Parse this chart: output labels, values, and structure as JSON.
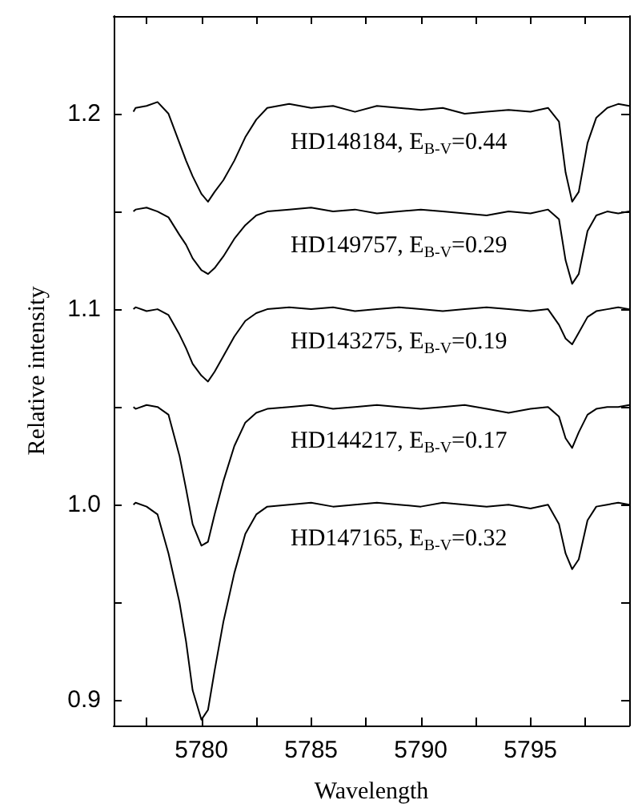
{
  "chart_data": {
    "type": "line",
    "xlabel": "Wavelength",
    "ylabel": "Relative intensity",
    "x": [
      5776.9,
      5777,
      5777.5,
      5778,
      5778.5,
      5779,
      5779.3,
      5779.6,
      5780,
      5780.3,
      5780.6,
      5781,
      5781.5,
      5782,
      5782.5,
      5783,
      5784,
      5785,
      5786,
      5787,
      5788,
      5789,
      5790,
      5791,
      5792,
      5793,
      5794,
      5795,
      5795.8,
      5796.3,
      5796.6,
      5796.9,
      5797.2,
      5797.6,
      5798,
      5798.5,
      5799,
      5799.5
    ],
    "series": [
      {
        "name": "HD148184, E$_{B-V}$=0.44",
        "color": "#000000",
        "values": [
          1.201,
          1.203,
          1.204,
          1.206,
          1.2,
          1.185,
          1.176,
          1.168,
          1.159,
          1.155,
          1.16,
          1.166,
          1.176,
          1.188,
          1.197,
          1.203,
          1.205,
          1.203,
          1.204,
          1.201,
          1.204,
          1.203,
          1.202,
          1.203,
          1.2,
          1.201,
          1.202,
          1.201,
          1.203,
          1.196,
          1.17,
          1.155,
          1.16,
          1.185,
          1.198,
          1.203,
          1.205,
          1.204
        ]
      },
      {
        "name": "HD149757, E$_{B-V}$=0.29",
        "color": "#000000",
        "values": [
          1.15,
          1.151,
          1.152,
          1.15,
          1.147,
          1.138,
          1.133,
          1.126,
          1.12,
          1.118,
          1.121,
          1.127,
          1.136,
          1.143,
          1.148,
          1.15,
          1.151,
          1.152,
          1.15,
          1.151,
          1.149,
          1.15,
          1.151,
          1.15,
          1.149,
          1.148,
          1.15,
          1.149,
          1.151,
          1.146,
          1.125,
          1.113,
          1.118,
          1.14,
          1.148,
          1.15,
          1.149,
          1.15
        ]
      },
      {
        "name": "HD143275, E$_{B-V}$=0.19",
        "color": "#000000",
        "values": [
          1.1,
          1.101,
          1.099,
          1.1,
          1.097,
          1.087,
          1.08,
          1.072,
          1.066,
          1.063,
          1.068,
          1.076,
          1.086,
          1.094,
          1.098,
          1.1,
          1.101,
          1.1,
          1.101,
          1.099,
          1.1,
          1.101,
          1.1,
          1.099,
          1.1,
          1.101,
          1.1,
          1.099,
          1.1,
          1.092,
          1.085,
          1.082,
          1.088,
          1.096,
          1.099,
          1.1,
          1.101,
          1.1
        ]
      },
      {
        "name": "HD144217, E$_{B-V}$=0.17",
        "color": "#000000",
        "values": [
          1.05,
          1.049,
          1.051,
          1.05,
          1.046,
          1.025,
          1.008,
          0.99,
          0.979,
          0.981,
          0.995,
          1.012,
          1.03,
          1.042,
          1.047,
          1.049,
          1.05,
          1.051,
          1.049,
          1.05,
          1.051,
          1.05,
          1.049,
          1.05,
          1.051,
          1.049,
          1.047,
          1.049,
          1.05,
          1.045,
          1.034,
          1.029,
          1.037,
          1.046,
          1.049,
          1.05,
          1.05,
          1.051
        ]
      },
      {
        "name": "HD147165, E$_{B-V}$=0.32",
        "color": "#000000",
        "values": [
          1.0,
          1.001,
          0.999,
          0.995,
          0.975,
          0.95,
          0.93,
          0.905,
          0.89,
          0.895,
          0.915,
          0.94,
          0.965,
          0.985,
          0.995,
          0.999,
          1.0,
          1.001,
          0.999,
          1.0,
          1.001,
          1.0,
          0.999,
          1.001,
          1.0,
          0.999,
          1.0,
          0.998,
          1.0,
          0.99,
          0.975,
          0.967,
          0.972,
          0.992,
          0.999,
          1.0,
          1.001,
          1.0
        ]
      }
    ],
    "xlim": [
      5776,
      5799.5
    ],
    "xticks": [
      {
        "value": 5777.5,
        "label": null
      },
      5780,
      {
        "value": 5782.5,
        "label": null
      },
      5785,
      {
        "value": 5787.5,
        "label": null
      },
      5790,
      {
        "value": 5792.5,
        "label": null
      },
      5795,
      {
        "value": 5797.5,
        "label": null
      }
    ],
    "ylim": [
      0.887,
      1.25
    ],
    "yticks": [
      0.9,
      {
        "value": 0.95,
        "label": null
      },
      {
        "value": 1,
        "label": "1.0"
      },
      {
        "value": 1.05,
        "label": null
      },
      1.1,
      {
        "value": 1.15,
        "label": null
      },
      1.2
    ],
    "grid": false,
    "marker": "none",
    "line_style": "solid"
  }
}
